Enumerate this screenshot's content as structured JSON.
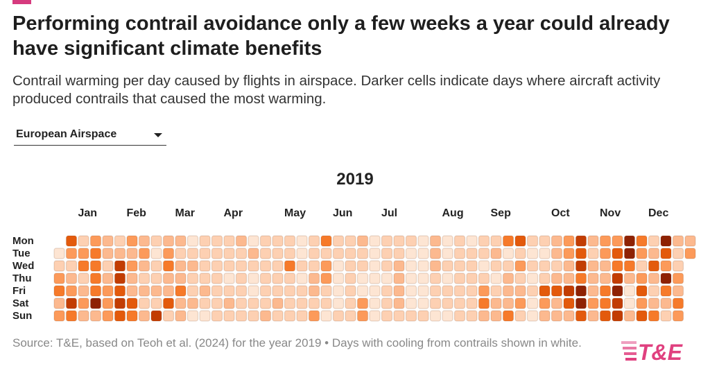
{
  "title": "Performing contrail avoidance only a few weeks a year could already have significant climate benefits",
  "subtitle": "Contrail warming per day caused by flights in airspace. Darker cells indicate days where aircraft activity produced contrails that caused the most warming.",
  "dropdown": {
    "selected": "European Airspace",
    "icon": "chevron-down-icon"
  },
  "source": "Source: T&E, based on Teoh et al. (2024) for the year 2019 • Days with cooling from contrails shown in white.",
  "logo": "T&E",
  "colors": {
    "accent": "#d63a7e",
    "scale": [
      "#ffffff",
      "#fde5d3",
      "#fdd0b2",
      "#fcb98f",
      "#fc9a5a",
      "#f67a2a",
      "#e35a0c",
      "#c23d03",
      "#8e2204"
    ]
  },
  "chart_data": {
    "type": "heatmap",
    "title": "2019",
    "year": 2019,
    "row_labels": [
      "Mon",
      "Tue",
      "Wed",
      "Thu",
      "Fri",
      "Sat",
      "Sun"
    ],
    "month_labels": [
      "Jan",
      "Feb",
      "Mar",
      "Apr",
      "May",
      "Jun",
      "Jul",
      "Aug",
      "Sep",
      "Oct",
      "Nov",
      "Dec"
    ],
    "value_note": "relative warming level per day, 1 (lowest) to 8 (highest), estimated from cell shading; columns are weeks starting Monday",
    "weeks_by_weekday": [
      [
        null,
        6,
        2,
        4,
        3,
        2,
        4,
        3,
        2,
        3,
        3,
        1,
        2,
        2,
        2,
        3,
        1,
        2,
        2,
        2,
        1,
        2,
        5,
        2,
        2,
        3,
        1,
        2,
        2,
        2,
        1,
        3,
        1,
        2,
        1,
        2,
        2,
        5,
        6,
        2,
        2,
        3,
        4,
        7,
        3,
        4,
        4,
        8,
        5,
        2,
        8,
        3,
        3
      ],
      [
        1,
        4,
        4,
        5,
        3,
        3,
        3,
        4,
        1,
        4,
        2,
        2,
        2,
        2,
        2,
        2,
        3,
        2,
        2,
        2,
        1,
        2,
        2,
        2,
        2,
        2,
        1,
        2,
        2,
        1,
        1,
        3,
        1,
        2,
        2,
        2,
        3,
        1,
        2,
        1,
        1,
        3,
        4,
        6,
        2,
        4,
        6,
        8,
        4,
        3,
        6,
        2,
        4
      ],
      [
        2,
        2,
        5,
        5,
        2,
        7,
        4,
        3,
        2,
        5,
        3,
        3,
        2,
        2,
        2,
        2,
        2,
        2,
        2,
        5,
        2,
        2,
        4,
        1,
        2,
        2,
        1,
        2,
        3,
        1,
        1,
        3,
        2,
        2,
        2,
        1,
        2,
        2,
        4,
        2,
        2,
        2,
        3,
        7,
        3,
        3,
        5,
        5,
        2,
        6,
        4,
        2
      ],
      [
        4,
        3,
        2,
        5,
        3,
        7,
        3,
        2,
        2,
        3,
        3,
        2,
        2,
        2,
        1,
        2,
        1,
        2,
        2,
        2,
        1,
        3,
        4,
        1,
        2,
        1,
        1,
        1,
        3,
        1,
        1,
        2,
        1,
        2,
        2,
        2,
        1,
        3,
        2,
        1,
        2,
        3,
        3,
        5,
        3,
        3,
        7,
        3,
        4,
        3,
        8,
        4
      ],
      [
        5,
        4,
        3,
        5,
        4,
        6,
        3,
        3,
        3,
        3,
        5,
        2,
        3,
        2,
        2,
        2,
        1,
        2,
        2,
        2,
        2,
        3,
        2,
        1,
        2,
        1,
        1,
        2,
        3,
        1,
        1,
        2,
        2,
        2,
        2,
        4,
        2,
        3,
        3,
        2,
        6,
        6,
        7,
        8,
        3,
        5,
        8,
        1,
        6,
        2,
        5,
        3
      ],
      [
        3,
        7,
        4,
        8,
        4,
        7,
        6,
        2,
        2,
        6,
        3,
        3,
        2,
        2,
        3,
        2,
        2,
        2,
        3,
        2,
        2,
        2,
        2,
        1,
        2,
        4,
        1,
        2,
        3,
        1,
        1,
        2,
        2,
        2,
        2,
        5,
        3,
        3,
        4,
        1,
        4,
        3,
        6,
        8,
        4,
        5,
        7,
        1,
        4,
        3,
        3,
        5
      ],
      [
        4,
        5,
        3,
        3,
        4,
        6,
        5,
        3,
        7,
        2,
        3,
        1,
        1,
        2,
        2,
        2,
        2,
        3,
        2,
        2,
        2,
        4,
        1,
        2,
        2,
        4,
        1,
        2,
        2,
        2,
        2,
        1,
        1,
        2,
        2,
        3,
        3,
        5,
        2,
        1,
        3,
        3,
        3,
        6,
        3,
        6,
        7,
        3,
        6,
        5,
        2,
        4
      ]
    ]
  }
}
